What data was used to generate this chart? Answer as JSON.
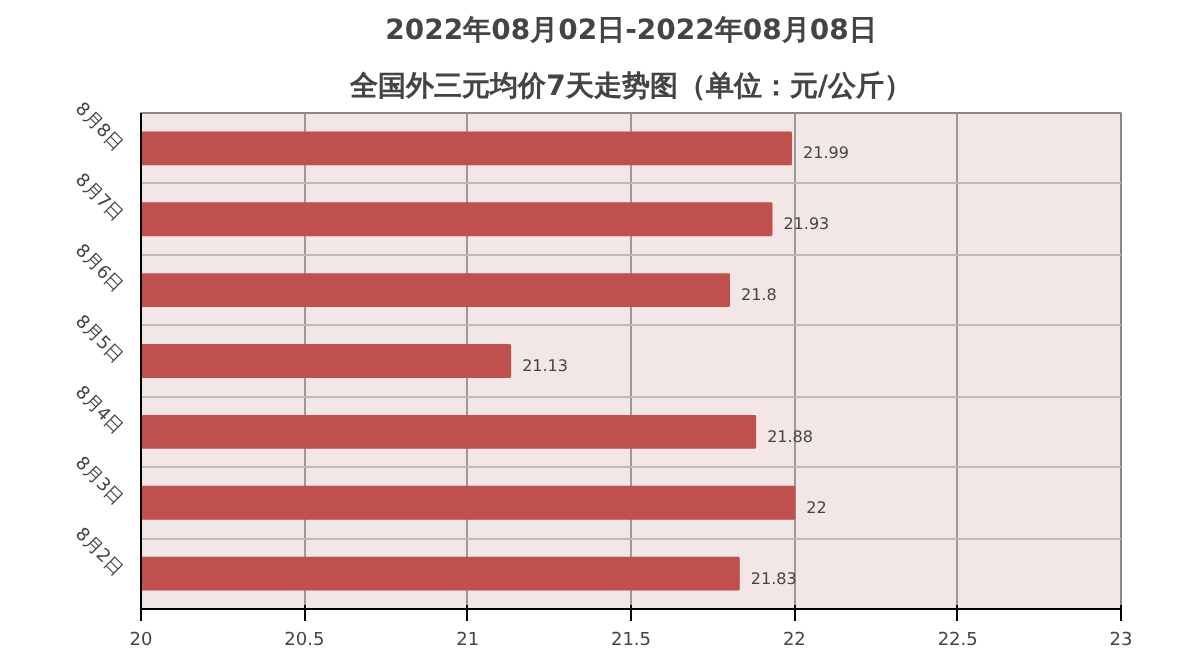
{
  "chart_data": {
    "type": "bar",
    "orientation": "horizontal",
    "title": "2022年08月02日-2022年08月08日",
    "subtitle": "全国外三元均价7天走势图（单位：元/公斤）",
    "categories": [
      "8月8日",
      "8月7日",
      "8月6日",
      "8月5日",
      "8月4日",
      "8月3日",
      "8月2日"
    ],
    "values": [
      21.99,
      21.93,
      21.8,
      21.13,
      21.88,
      22,
      21.83
    ],
    "color": "#c0504d",
    "xlim": [
      20,
      23
    ],
    "xticks": [
      20,
      20.5,
      21,
      21.5,
      22,
      22.5,
      23
    ],
    "data_labels": true,
    "grid": true
  }
}
